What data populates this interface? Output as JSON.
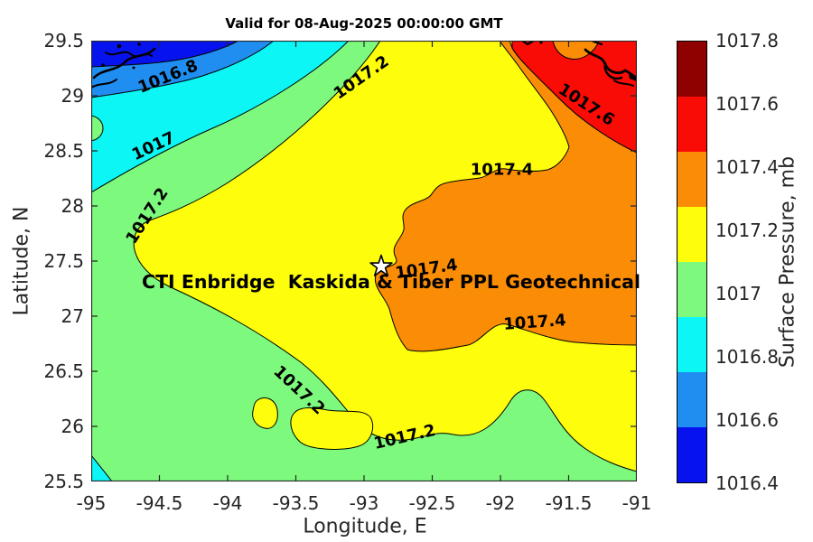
{
  "figure": {
    "title": "Valid for 08-Aug-2025 00:00:00 GMT",
    "annotation": "CTI Enbridge  Kaskida & Tiber PPL Geotechnical"
  },
  "chart_data": {
    "type": "heatmap",
    "subtype": "filled-contour-map",
    "title": "Valid for 08-Aug-2025 00:00:00 GMT",
    "xlabel": "Longitude, E",
    "ylabel": "Latitude, N",
    "xlim": [
      -95,
      -91
    ],
    "ylim": [
      25.5,
      29.5
    ],
    "x_ticks": [
      -95,
      -94.5,
      -94,
      -93.5,
      -93,
      -92.5,
      -92,
      -91.5,
      -91
    ],
    "y_ticks": [
      29.5,
      29,
      28.5,
      28,
      27.5,
      27,
      26.5,
      26,
      25.5
    ],
    "grid": false,
    "colorbar": {
      "label": "Surface Pressure, mb",
      "ticks_top_to_bottom": [
        1017.8,
        1017.6,
        1017.4,
        1017.2,
        1017,
        1016.8,
        1016.6,
        1016.4
      ],
      "band_colors_top_to_bottom": [
        "#8f0000",
        "#f90b06",
        "#fb8d06",
        "#fdfd0c",
        "#7dfa7d",
        "#0cf6f6",
        "#1f8ef0",
        "#0713ee"
      ],
      "range": [
        1016.4,
        1017.8
      ]
    },
    "contour_levels": [
      1016.6,
      1016.8,
      1017,
      1017.2,
      1017.4,
      1017.6
    ],
    "contour_labels": [
      {
        "value": "1016.8",
        "lon": -94.44,
        "lat": 29.17,
        "rotation": -22
      },
      {
        "value": "1017",
        "lon": -94.54,
        "lat": 28.54,
        "rotation": -25
      },
      {
        "value": "1017.2",
        "lon": -94.59,
        "lat": 27.91,
        "rotation": -57
      },
      {
        "value": "1017.2",
        "lon": -93.02,
        "lat": 29.16,
        "rotation": -35
      },
      {
        "value": "1017.6",
        "lon": -91.37,
        "lat": 28.92,
        "rotation": 33
      },
      {
        "value": "1017.4",
        "lon": -91.99,
        "lat": 28.33,
        "rotation": 0
      },
      {
        "value": "1017.4",
        "lon": -92.54,
        "lat": 27.43,
        "rotation": -8
      },
      {
        "value": "1017.4",
        "lon": -91.75,
        "lat": 26.94,
        "rotation": -4
      },
      {
        "value": "1017.2",
        "lon": -93.48,
        "lat": 26.33,
        "rotation": 43
      },
      {
        "value": "1017.2",
        "lon": -92.7,
        "lat": 25.9,
        "rotation": -13
      }
    ],
    "marker": {
      "shape": "star",
      "lon": -92.87,
      "lat": 27.45,
      "label": "CTI Enbridge  Kaskida & Tiber PPL Geotechnical"
    }
  }
}
